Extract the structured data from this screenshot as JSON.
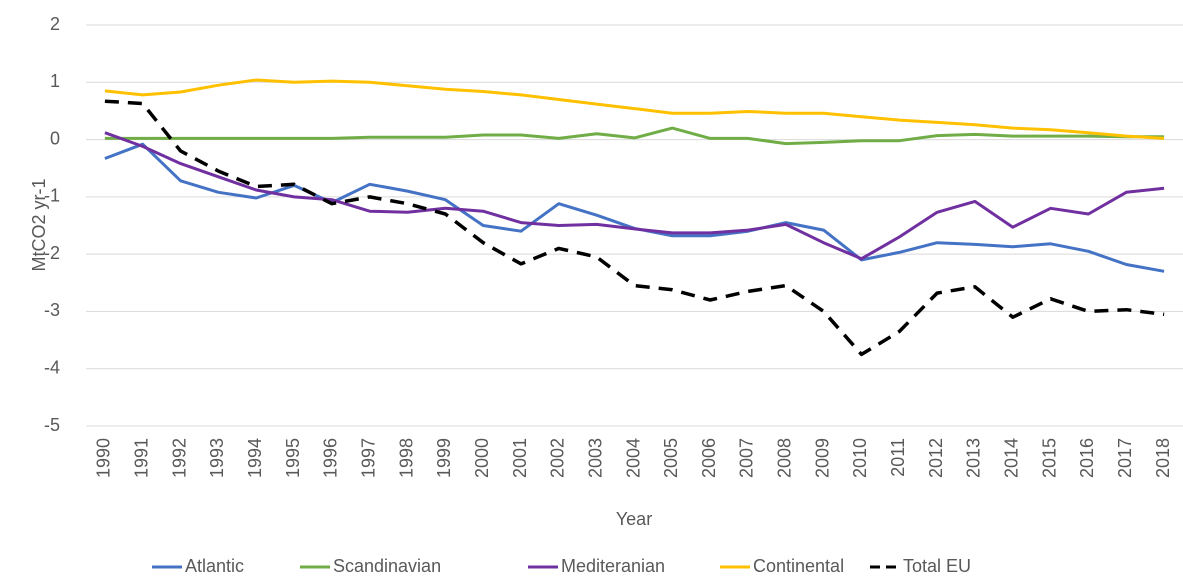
{
  "chart_data": {
    "type": "line",
    "x_label": "Year",
    "y_label": "MtCO2 yr-1",
    "categories": [
      "1990",
      "1991",
      "1992",
      "1993",
      "1994",
      "1995",
      "1996",
      "1997",
      "1998",
      "1999",
      "2000",
      "2001",
      "2002",
      "2003",
      "2004",
      "2005",
      "2006",
      "2007",
      "2008",
      "2009",
      "2010",
      "2011",
      "2012",
      "2013",
      "2014",
      "2015",
      "2016",
      "2017",
      "2018"
    ],
    "series": [
      {
        "name": "Atlantic",
        "color": "#4472c4",
        "dashed": false,
        "values": [
          -0.33,
          -0.08,
          -0.72,
          -0.92,
          -1.02,
          -0.8,
          -1.1,
          -0.78,
          -0.9,
          -1.05,
          -1.5,
          -1.6,
          -1.12,
          -1.32,
          -1.55,
          -1.68,
          -1.68,
          -1.6,
          -1.45,
          -1.58,
          -2.1,
          -1.97,
          -1.8,
          -1.83,
          -1.87,
          -1.82,
          -1.95,
          -2.18,
          -2.3
        ]
      },
      {
        "name": "Scandinavian",
        "color": "#70ad47",
        "dashed": false,
        "values": [
          0.02,
          0.02,
          0.02,
          0.02,
          0.02,
          0.02,
          0.02,
          0.04,
          0.04,
          0.04,
          0.08,
          0.08,
          0.02,
          0.1,
          0.03,
          0.2,
          0.02,
          0.02,
          -0.07,
          -0.05,
          -0.02,
          -0.02,
          0.07,
          0.09,
          0.06,
          0.06,
          0.06,
          0.05,
          0.05
        ]
      },
      {
        "name": "Mediteranian",
        "color": "#7030a0",
        "dashed": false,
        "values": [
          0.12,
          -0.12,
          -0.42,
          -0.65,
          -0.88,
          -1.0,
          -1.05,
          -1.25,
          -1.27,
          -1.2,
          -1.25,
          -1.45,
          -1.5,
          -1.48,
          -1.56,
          -1.63,
          -1.63,
          -1.58,
          -1.48,
          -1.8,
          -2.08,
          -1.7,
          -1.27,
          -1.08,
          -1.53,
          -1.2,
          -1.3,
          -0.92,
          -0.85
        ]
      },
      {
        "name": "Continental",
        "color": "#ffc000",
        "dashed": false,
        "values": [
          0.85,
          0.78,
          0.83,
          0.95,
          1.04,
          1.0,
          1.02,
          1.0,
          0.94,
          0.88,
          0.84,
          0.78,
          0.7,
          0.62,
          0.54,
          0.46,
          0.46,
          0.49,
          0.46,
          0.46,
          0.4,
          0.34,
          0.3,
          0.26,
          0.2,
          0.17,
          0.12,
          0.06,
          0.02
        ]
      },
      {
        "name": "Total  EU",
        "color": "#000000",
        "dashed": true,
        "values": [
          0.67,
          0.63,
          -0.2,
          -0.55,
          -0.82,
          -0.78,
          -1.12,
          -1.0,
          -1.12,
          -1.3,
          -1.8,
          -2.17,
          -1.9,
          -2.05,
          -2.55,
          -2.62,
          -2.8,
          -2.65,
          -2.55,
          -3.0,
          -3.75,
          -3.35,
          -2.68,
          -2.57,
          -3.1,
          -2.78,
          -3.0,
          -2.97,
          -3.05
        ]
      }
    ],
    "ylim": [
      -5,
      2
    ],
    "yticks": [
      -5,
      -4,
      -3,
      -2,
      -1,
      0,
      1,
      2
    ],
    "grid": true,
    "legend": "bottom"
  }
}
